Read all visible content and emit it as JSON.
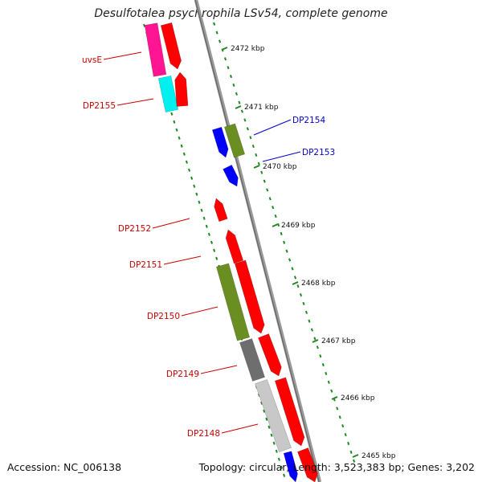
{
  "title": "Desulfotalea psychrophila LSv54, complete genome",
  "accession_text": "Accession: NC_006138",
  "summary_text": "Topology: circular; Length: 3,523,383 bp; Genes: 3,202",
  "colors": {
    "backbone": "#8a8a8a",
    "forward_gene": "#ff0000",
    "reverse_gene": "#0000ff",
    "gc_tick": "#228822",
    "forward_label": "#cc0000",
    "reverse_label": "#0000cc"
  },
  "kbp_ticks": [
    "2472 kbp",
    "2471 kbp",
    "2470 kbp",
    "2469 kbp",
    "2468 kbp",
    "2467 kbp",
    "2466 kbp",
    "2465 kbp"
  ],
  "gene_labels": [
    {
      "text": "uvsE",
      "strand": "forward"
    },
    {
      "text": "DP2155",
      "strand": "forward"
    },
    {
      "text": "DP2154",
      "strand": "reverse"
    },
    {
      "text": "DP2153",
      "strand": "reverse"
    },
    {
      "text": "DP2152",
      "strand": "forward"
    },
    {
      "text": "DP2151",
      "strand": "forward"
    },
    {
      "text": "DP2150",
      "strand": "forward"
    },
    {
      "text": "DP2149",
      "strand": "forward"
    },
    {
      "text": "DP2148",
      "strand": "forward"
    }
  ]
}
